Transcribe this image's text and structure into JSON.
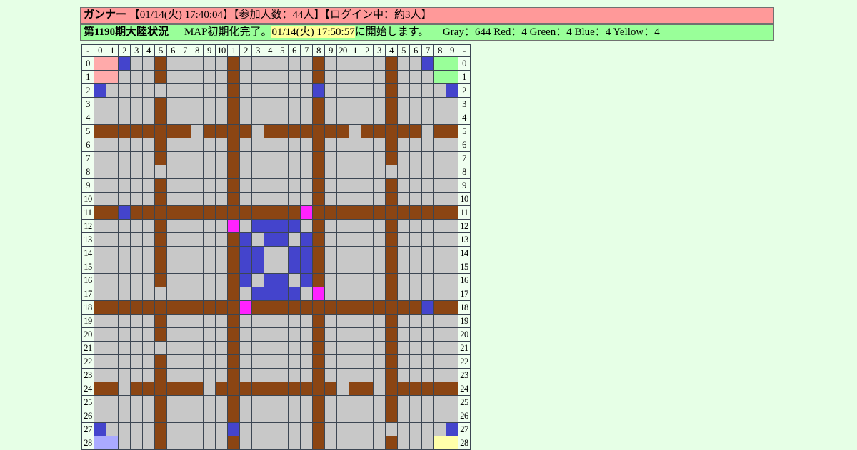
{
  "colors": {
    "page_bg": "#e6ffe6",
    "bar1_bg": "#ff9999",
    "bar2_bg": "#99ff99",
    "highlight_bg": "#ffff99",
    "label_bg": "#f0fff0",
    "gray_cell": "#c8c8c8",
    "brown_wall": "#8b4513",
    "blue_cell": "#4444cc",
    "magenta_cell": "#ff22ff",
    "pink_cell": "#ffaaaa",
    "green_cell": "#99ff99",
    "yellow_cell": "#ffffaa",
    "lavender_cell": "#aaaaff"
  },
  "bar1": {
    "title": "ガンナー",
    "info": "【01/14(火) 17:40:04】【参加人数：44人】【ログイン中：約3人】"
  },
  "bar2": {
    "title": "第1190期大陸状況",
    "msg_pre": "MAP初期化完了。",
    "time": "01/14(火) 17:50:57",
    "msg_post": "に開始します。",
    "counts": "Gray：644 Red：4 Green：4 Blue：4 Yellow：4"
  },
  "map": {
    "palette": {
      ".": "#c8c8c8",
      "W": "#8b4513",
      "B": "#4444cc",
      "M": "#ff22ff",
      "P": "#ffaaaa",
      "G": "#99ff99",
      "Y": "#ffffaa",
      "L": "#aaaaff"
    },
    "legend": {
      ".": "empty-gray",
      "W": "brown-wall",
      "B": "blue-unit",
      "M": "magenta-item",
      "P": "red-team-base",
      "G": "green-team-base",
      "Y": "yellow-team-base",
      "L": "blue-team-base"
    },
    "col_headers": [
      "-",
      "0",
      "1",
      "2",
      "3",
      "4",
      "5",
      "6",
      "7",
      "8",
      "9",
      "10",
      "1",
      "2",
      "3",
      "4",
      "5",
      "6",
      "7",
      "8",
      "9",
      "20",
      "1",
      "2",
      "3",
      "4",
      "5",
      "6",
      "7",
      "8",
      "9",
      "-"
    ],
    "rows": [
      {
        "label": "0",
        "cells": "PPB..W.....W......W.....W..BGG"
      },
      {
        "label": "1",
        "cells": "PP...W.....W......W.....W...GG"
      },
      {
        "label": "2",
        "cells": "B..........W......B.....W....B"
      },
      {
        "label": "3",
        "cells": ".....W.....W......W.....W....."
      },
      {
        "label": "4",
        "cells": ".....W.....W......W.....W....."
      },
      {
        "label": "5",
        "cells": "WWWWWWWW.WWWW.WWWWWWW.WWWWW.WW"
      },
      {
        "label": "6",
        "cells": ".....W.....W......W.....W....."
      },
      {
        "label": "7",
        "cells": ".....W.....W......W.....W....."
      },
      {
        "label": "8",
        "cells": "...........W......W..........."
      },
      {
        "label": "9",
        "cells": ".....W.....W......W.....W....."
      },
      {
        "label": "10",
        "cells": ".....W.....W......W.....W....."
      },
      {
        "label": "11",
        "cells": "WWBWWWWWWWWWWWWWWMWWWWWWWWWWWW"
      },
      {
        "label": "12",
        "cells": ".....W.....M.BBBB.W.....W....."
      },
      {
        "label": "13",
        "cells": ".....W.....WB.BB.BW.....W....."
      },
      {
        "label": "14",
        "cells": ".....W.....WBB..BBW.....W....."
      },
      {
        "label": "15",
        "cells": ".....W.....WBB..BBW.....W....."
      },
      {
        "label": "16",
        "cells": ".....W.....WB.BB.BW.....W....."
      },
      {
        "label": "17",
        "cells": "...........W.BBBB.M.....W....."
      },
      {
        "label": "18",
        "cells": "WWWWWWWWWWWWMWWWWWWWWWWWWWWBWW"
      },
      {
        "label": "19",
        "cells": ".....W.....W......W.....W....."
      },
      {
        "label": "20",
        "cells": ".....W.....W......W.....W....."
      },
      {
        "label": "21",
        "cells": "...........W......W.....W....."
      },
      {
        "label": "22",
        "cells": ".....W.....W......W.....W....."
      },
      {
        "label": "23",
        "cells": ".....W.....W......W.....W....."
      },
      {
        "label": "24",
        "cells": "WW.WWWWWW.WWWWWWWWWW.WW.WWWWWW"
      },
      {
        "label": "25",
        "cells": ".....W.....W......W.....W....."
      },
      {
        "label": "26",
        "cells": ".....W.....W......W.....W....."
      },
      {
        "label": "27",
        "cells": "B....W.....B......W..........B"
      },
      {
        "label": "28",
        "cells": "LL...W.....W......W.....W...YY"
      }
    ]
  }
}
